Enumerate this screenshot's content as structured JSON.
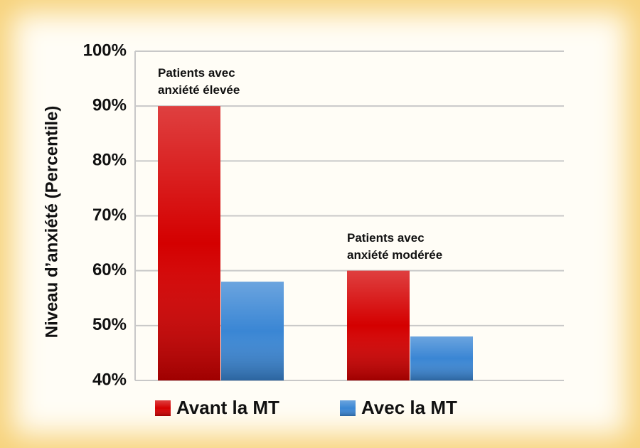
{
  "chart_data": {
    "type": "bar",
    "y_label": "Niveau d’anxiété (Percentile)",
    "categories": [
      "Patients avec anxiété élevée",
      "Patients avec anxiété modérée"
    ],
    "series": [
      {
        "name": "Avant la MT",
        "color": "#d40000",
        "values": [
          90,
          60
        ]
      },
      {
        "name": "Avec la MT",
        "color": "#3a86d4",
        "values": [
          58,
          48
        ]
      }
    ],
    "ylim": [
      40,
      100
    ],
    "yticks": [
      {
        "value": 40,
        "label": "40%"
      },
      {
        "value": 50,
        "label": "50%"
      },
      {
        "value": 60,
        "label": "60%"
      },
      {
        "value": 70,
        "label": "70%"
      },
      {
        "value": 80,
        "label": "80%"
      },
      {
        "value": 90,
        "label": "90%"
      },
      {
        "value": 100,
        "label": "100%"
      }
    ],
    "grid": true,
    "legend": "bottom"
  }
}
